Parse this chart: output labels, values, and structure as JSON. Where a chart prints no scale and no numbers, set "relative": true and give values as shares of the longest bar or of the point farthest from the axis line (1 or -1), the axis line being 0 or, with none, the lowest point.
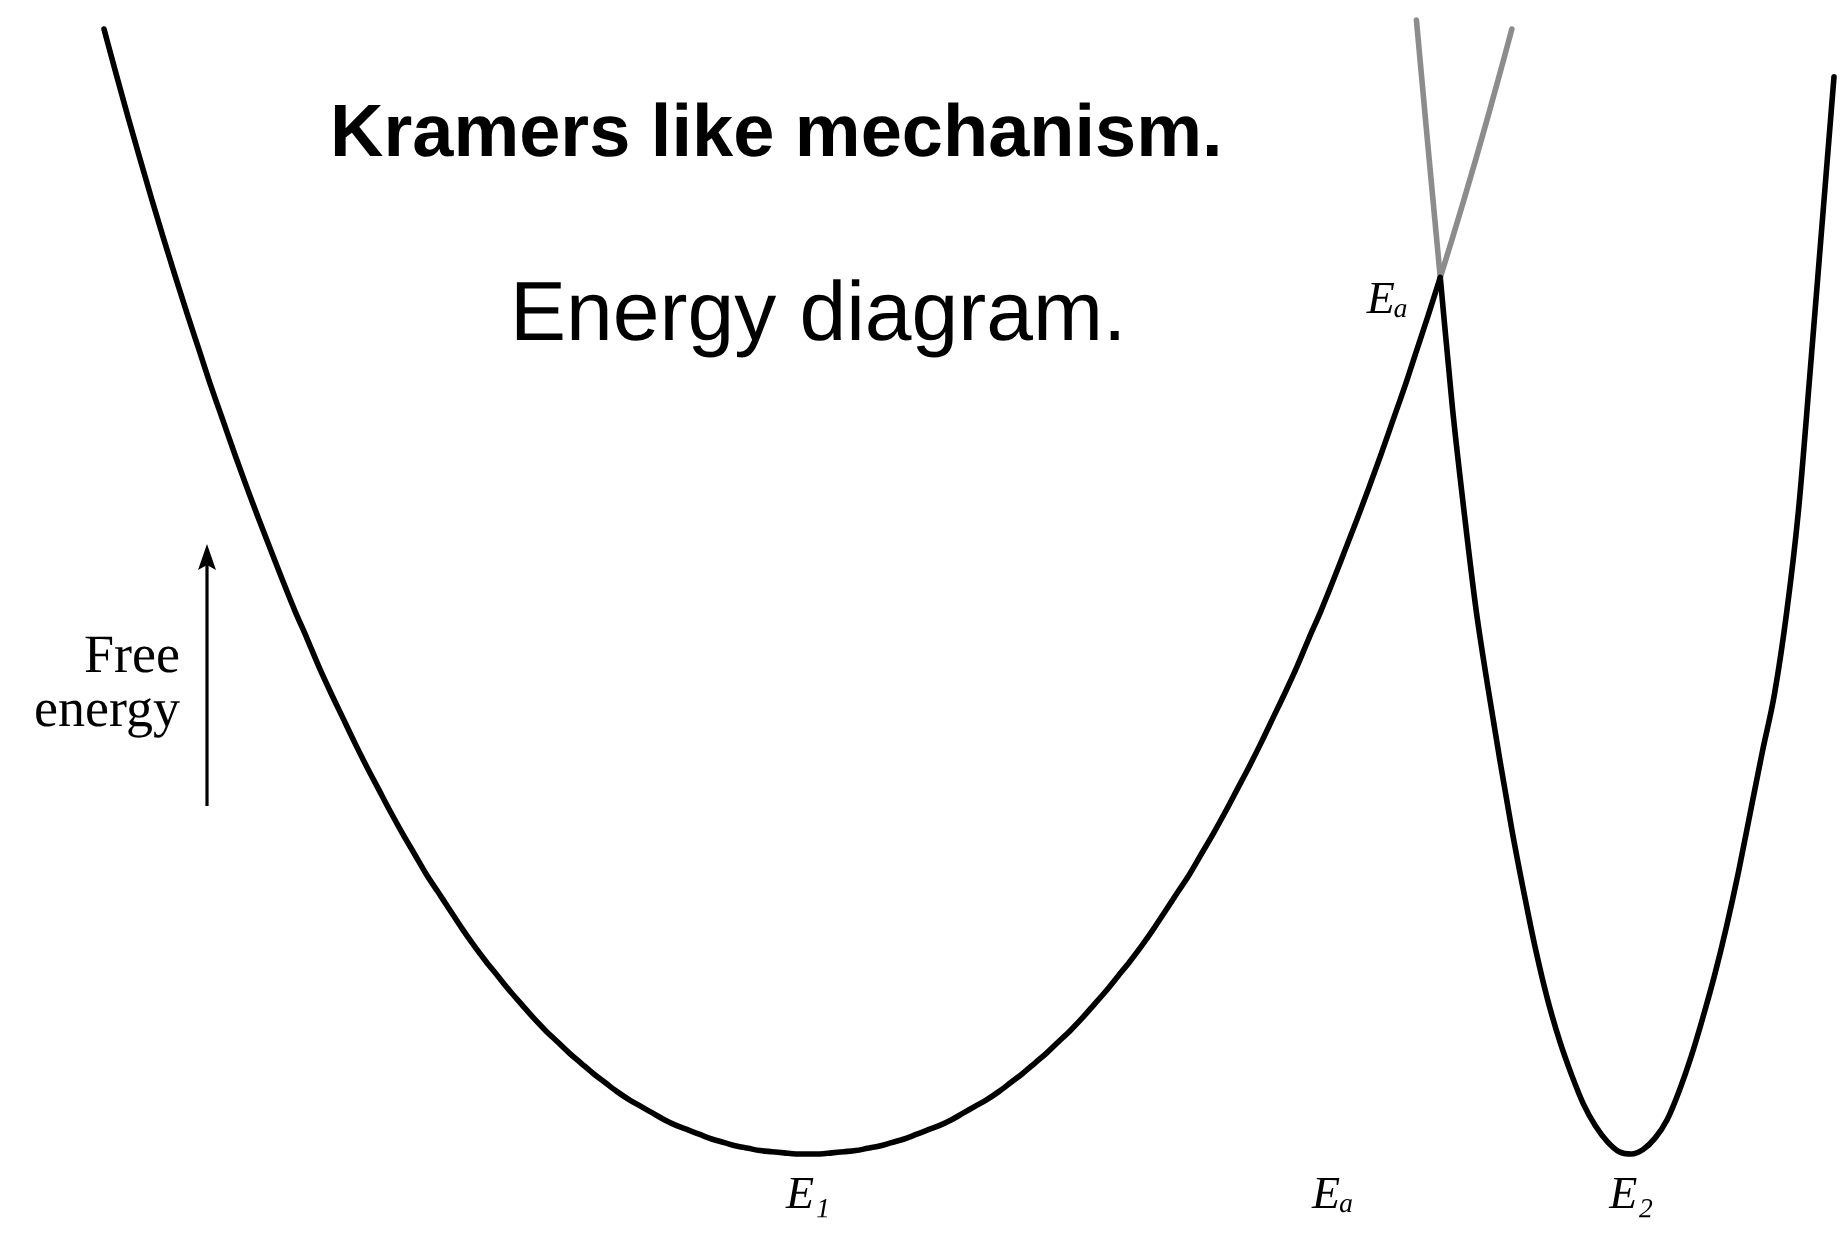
{
  "chart_data": {
    "type": "line",
    "title": "Kramers like mechanism.",
    "subtitle": "Energy diagram.",
    "ylabel": "Free energy",
    "relative": true,
    "categories": [
      null,
      null,
      null,
      null,
      null,
      null,
      null,
      null,
      null,
      null,
      null,
      null,
      null,
      null,
      null,
      null,
      null,
      null,
      null,
      null,
      null,
      null,
      null,
      null,
      null,
      null,
      null,
      null,
      null,
      null,
      null,
      null,
      null,
      null,
      null,
      null,
      null,
      null,
      null,
      null,
      null,
      null,
      null,
      null,
      null,
      null,
      null,
      null,
      null,
      null,
      null,
      null,
      null,
      null,
      null,
      null,
      null,
      null,
      null,
      "E₁",
      null,
      null,
      null,
      null,
      null,
      null,
      null,
      null,
      null,
      null,
      null,
      null,
      null,
      null,
      null,
      null,
      null,
      null,
      null,
      null,
      null,
      null,
      null,
      null,
      null,
      null,
      null,
      null,
      null,
      null,
      null,
      null,
      null,
      null,
      null,
      null,
      null,
      null,
      null,
      null,
      null,
      null,
      null,
      "Eₐ",
      null,
      null,
      null,
      null,
      null,
      null,
      null,
      null,
      null,
      null,
      null,
      null,
      null,
      null,
      null,
      null,
      null,
      null,
      null,
      null,
      null,
      null,
      null,
      null,
      "E₂",
      null,
      null,
      null,
      null,
      null,
      null,
      null,
      null,
      null,
      null,
      null,
      null,
      null,
      null,
      null,
      null,
      null
    ],
    "series": [
      {
        "color": "#000000",
        "values": [
          0.992,
          0.953,
          0.915,
          0.878,
          0.842,
          0.807,
          0.773,
          0.74,
          0.708,
          0.676,
          0.646,
          0.616,
          0.587,
          0.559,
          0.532,
          0.505,
          0.479,
          0.455,
          0.43,
          0.407,
          0.385,
          0.363,
          0.342,
          0.322,
          0.302,
          0.283,
          0.265,
          0.247,
          0.231,
          0.215,
          0.199,
          0.184,
          0.17,
          0.157,
          0.144,
          0.132,
          0.12,
          0.109,
          0.099,
          0.089,
          0.08,
          0.071,
          0.063,
          0.055,
          0.048,
          0.042,
          0.036,
          0.03,
          0.025,
          0.021,
          0.017,
          0.013,
          0.01,
          0.007,
          0.005,
          0.003,
          0.002,
          0.001,
          0,
          0,
          0,
          0.001,
          0.002,
          0.003,
          0.005,
          0.007,
          0.01,
          0.013,
          0.017,
          0.021,
          0.025,
          0.03,
          0.036,
          0.042,
          0.048,
          0.055,
          0.063,
          0.071,
          0.08,
          0.089,
          0.099,
          0.109,
          0.12,
          0.132,
          0.144,
          0.157,
          0.17,
          0.184,
          0.199,
          0.215,
          0.231,
          0.247,
          0.265,
          0.283,
          0.302,
          0.322,
          0.342,
          0.363,
          0.385,
          0.407,
          0.43,
          0.455,
          0.479,
          0.505,
          0.532,
          0.559,
          0.587,
          0.616,
          0.646,
          0.676,
          0.708,
          0.74,
          0.773,
          null,
          null,
          null,
          null,
          null,
          null,
          null,
          null,
          null,
          null,
          null,
          null,
          null,
          null,
          null,
          null,
          null,
          null,
          null,
          null,
          null,
          null,
          null,
          null,
          null,
          null,
          null,
          null,
          null,
          null,
          null,
          null,
          null
        ]
      },
      {
        "color": "#8c8c8c",
        "values": [
          null,
          null,
          null,
          null,
          null,
          null,
          null,
          null,
          null,
          null,
          null,
          null,
          null,
          null,
          null,
          null,
          null,
          null,
          null,
          null,
          null,
          null,
          null,
          null,
          null,
          null,
          null,
          null,
          null,
          null,
          null,
          null,
          null,
          null,
          null,
          null,
          null,
          null,
          null,
          null,
          null,
          null,
          null,
          null,
          null,
          null,
          null,
          null,
          null,
          null,
          null,
          null,
          null,
          null,
          null,
          null,
          null,
          null,
          null,
          null,
          null,
          null,
          null,
          null,
          null,
          null,
          null,
          null,
          null,
          null,
          null,
          null,
          null,
          null,
          null,
          null,
          null,
          null,
          null,
          null,
          null,
          null,
          null,
          null,
          null,
          null,
          null,
          null,
          null,
          null,
          null,
          null,
          null,
          null,
          null,
          null,
          null,
          null,
          null,
          null,
          null,
          null,
          null,
          null,
          null,
          null,
          null,
          null,
          null,
          null,
          null,
          null,
          0.773,
          0.807,
          0.842,
          0.878,
          0.915,
          0.953,
          0.992,
          null,
          null,
          null,
          null,
          null,
          null,
          null,
          null,
          null,
          null,
          null,
          null,
          null,
          null,
          null,
          null,
          null,
          null,
          null,
          null,
          null,
          null,
          null,
          null,
          null,
          null,
          null
        ]
      },
      {
        "color": "#8c8c8c",
        "values": [
          null,
          null,
          null,
          null,
          null,
          null,
          null,
          null,
          null,
          null,
          null,
          null,
          null,
          null,
          null,
          null,
          null,
          null,
          null,
          null,
          null,
          null,
          null,
          null,
          null,
          null,
          null,
          null,
          null,
          null,
          null,
          null,
          null,
          null,
          null,
          null,
          null,
          null,
          null,
          null,
          null,
          null,
          null,
          null,
          null,
          null,
          null,
          null,
          null,
          null,
          null,
          null,
          null,
          null,
          null,
          null,
          null,
          null,
          null,
          null,
          null,
          null,
          null,
          null,
          null,
          null,
          null,
          null,
          null,
          null,
          null,
          null,
          null,
          null,
          null,
          null,
          null,
          null,
          null,
          null,
          null,
          null,
          null,
          null,
          null,
          null,
          null,
          null,
          null,
          null,
          null,
          null,
          null,
          null,
          null,
          null,
          null,
          null,
          null,
          null,
          null,
          null,
          null,
          null,
          null,
          null,
          null,
          null,
          null,
          null,
          1,
          0.885,
          0.773,
          null,
          null,
          null,
          null,
          null,
          null,
          null,
          null,
          null,
          null,
          null,
          null,
          null,
          null,
          null,
          null,
          null,
          null,
          null,
          null,
          null,
          null,
          null,
          null,
          null,
          null,
          null,
          null,
          null,
          null,
          null,
          null,
          null
        ]
      },
      {
        "color": "#000000",
        "values": [
          null,
          null,
          null,
          null,
          null,
          null,
          null,
          null,
          null,
          null,
          null,
          null,
          null,
          null,
          null,
          null,
          null,
          null,
          null,
          null,
          null,
          null,
          null,
          null,
          null,
          null,
          null,
          null,
          null,
          null,
          null,
          null,
          null,
          null,
          null,
          null,
          null,
          null,
          null,
          null,
          null,
          null,
          null,
          null,
          null,
          null,
          null,
          null,
          null,
          null,
          null,
          null,
          null,
          null,
          null,
          null,
          null,
          null,
          null,
          null,
          null,
          null,
          null,
          null,
          null,
          null,
          null,
          null,
          null,
          null,
          null,
          null,
          null,
          null,
          null,
          null,
          null,
          null,
          null,
          null,
          null,
          null,
          null,
          null,
          null,
          null,
          null,
          null,
          null,
          null,
          null,
          null,
          null,
          null,
          null,
          null,
          null,
          null,
          null,
          null,
          null,
          null,
          null,
          null,
          null,
          null,
          null,
          null,
          null,
          null,
          null,
          null,
          0.773,
          0.66,
          0.566,
          0.48,
          0.411,
          0.347,
          0.286,
          0.231,
          0.18,
          0.136,
          0.1,
          0.07,
          0.044,
          0.025,
          0.011,
          0.002,
          0,
          0.004,
          0.014,
          0.03,
          0.055,
          0.085,
          0.12,
          0.158,
          0.201,
          0.249,
          0.302,
          0.355,
          0.405,
          0.475,
          0.565,
          0.69,
          0.82,
          0.95
        ]
      }
    ],
    "annotations": [
      "Eₐ"
    ]
  }
}
